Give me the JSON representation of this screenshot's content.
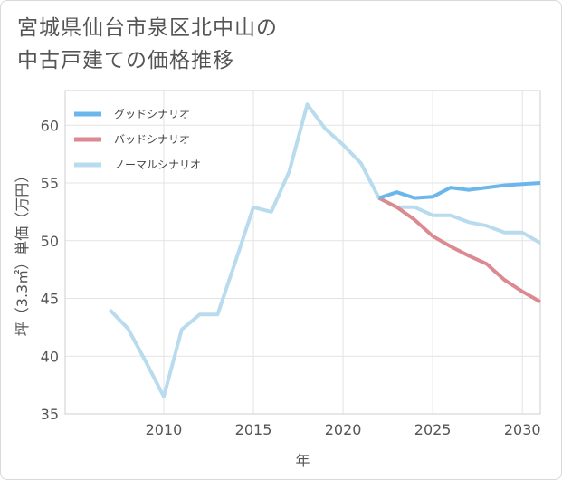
{
  "title_line1": "宮城県仙台市泉区北中山の",
  "title_line2": "中古戸建ての価格推移",
  "chart_data": {
    "type": "line",
    "xlabel": "年",
    "ylabel": "坪（3.3㎡）単価（万円）",
    "xlim": [
      2004.5,
      2031
    ],
    "ylim": [
      35,
      63
    ],
    "x_ticks": [
      2010,
      2015,
      2020,
      2025,
      2030
    ],
    "y_ticks": [
      35,
      40,
      45,
      50,
      55,
      60
    ],
    "grid": true,
    "legend_position": "top-left",
    "series": [
      {
        "name": "グッドシナリオ",
        "color": "#6bb7ec",
        "x": [
          2022,
          2023,
          2024,
          2025,
          2026,
          2027,
          2028,
          2029,
          2030,
          2031
        ],
        "y": [
          53.7,
          54.2,
          53.7,
          53.8,
          54.6,
          54.4,
          54.6,
          54.8,
          54.9,
          55.0
        ]
      },
      {
        "name": "バッドシナリオ",
        "color": "#dc8a91",
        "x": [
          2022,
          2023,
          2024,
          2025,
          2026,
          2027,
          2028,
          2029,
          2030,
          2031
        ],
        "y": [
          53.7,
          52.9,
          51.8,
          50.4,
          49.5,
          48.7,
          48.0,
          46.6,
          45.6,
          44.7
        ]
      },
      {
        "name": "ノーマルシナリオ",
        "color": "#b8dced",
        "x": [
          2007,
          2008,
          2009,
          2010,
          2011,
          2012,
          2013,
          2014,
          2015,
          2016,
          2017,
          2018,
          2019,
          2020,
          2021,
          2022,
          2023,
          2024,
          2025,
          2026,
          2027,
          2028,
          2029,
          2030,
          2031
        ],
        "y": [
          44.0,
          42.4,
          39.5,
          36.5,
          42.3,
          43.6,
          43.6,
          48.2,
          52.9,
          52.5,
          56.0,
          61.8,
          59.7,
          58.3,
          56.7,
          53.7,
          52.9,
          52.9,
          52.2,
          52.2,
          51.6,
          51.3,
          50.7,
          50.7,
          49.8
        ]
      }
    ]
  }
}
